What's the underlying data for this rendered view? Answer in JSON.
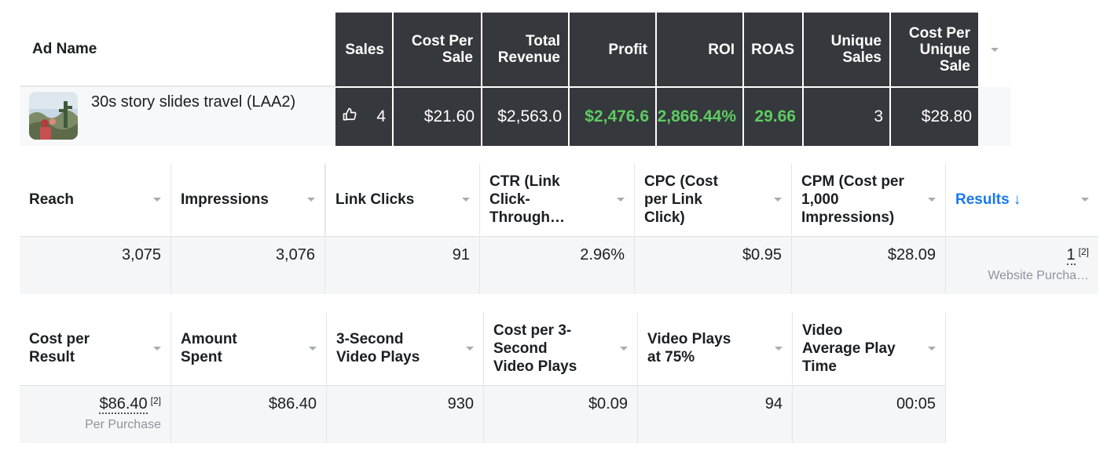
{
  "attribution": {
    "ad_name_header": "Ad Name",
    "ad_name": "30s story slides travel (LAA2)",
    "thumbnail_icon": "travel-photo-thumbnail",
    "headers": [
      {
        "label": "Sales"
      },
      {
        "label": "Cost Per Sale"
      },
      {
        "label": "Total Revenue"
      },
      {
        "label": "Profit"
      },
      {
        "label": "ROI"
      },
      {
        "label": "ROAS"
      },
      {
        "label": "Unique Sales"
      },
      {
        "label": "Cost Per Unique Sale"
      }
    ],
    "values": {
      "sales": "4",
      "cost_per_sale": "$21.60",
      "total_revenue": "$2,563.0",
      "profit": "$2,476.6",
      "roi": "2,866.44%",
      "roas": "29.66",
      "unique_sales": "3",
      "cost_per_unique_sale": "$28.80"
    },
    "sales_icon": "thumbs-up-icon",
    "positive_color": "#5dcc61",
    "dark_bg": "#35383c"
  },
  "metrics_row1": {
    "headers": [
      {
        "label": "Reach"
      },
      {
        "label": "Impressions"
      },
      {
        "label": "Link Clicks"
      },
      {
        "label": "CTR (Link Click-Through…"
      },
      {
        "label": "CPC (Cost per Link Click)"
      },
      {
        "label": "CPM (Cost per 1,000 Impressions)"
      },
      {
        "label": "Results ↓"
      }
    ],
    "values": {
      "reach": "3,075",
      "impressions": "3,076",
      "link_clicks": "91",
      "ctr": "2.96%",
      "cpc": "$0.95",
      "cpm": "$28.09",
      "results": "1",
      "results_note": "[2]",
      "results_sub": "Website Purcha…"
    },
    "accent_color": "#1877f2"
  },
  "metrics_row2": {
    "headers": [
      {
        "label": "Cost per Result"
      },
      {
        "label": "Amount Spent"
      },
      {
        "label": "3-Second Video Plays"
      },
      {
        "label": "Cost per 3-Second Video Plays"
      },
      {
        "label": "Video Plays at 75%"
      },
      {
        "label": "Video Average Play Time"
      }
    ],
    "values": {
      "cost_per_result": "$86.40",
      "cost_per_result_note": "[2]",
      "cost_per_result_sub": "Per Purchase",
      "amount_spent": "$86.40",
      "three_sec_plays": "930",
      "cost_per_three_sec": "$0.09",
      "plays_75": "94",
      "avg_play_time": "00:05"
    }
  }
}
